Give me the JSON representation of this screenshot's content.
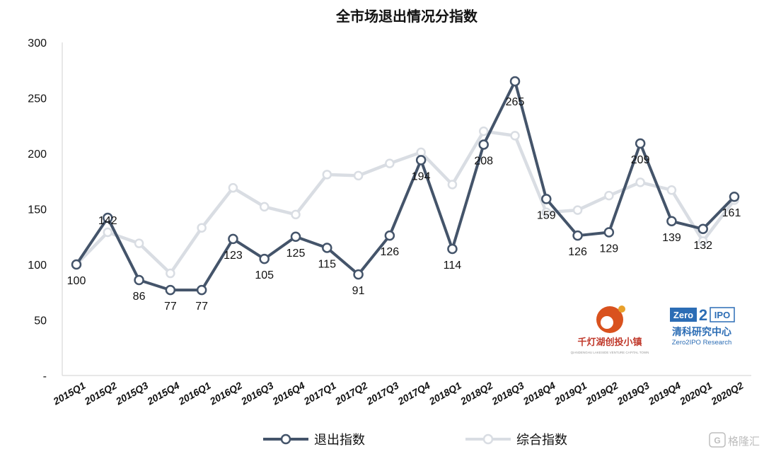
{
  "chart_data": {
    "type": "line",
    "title": "全市场退出情况分指数",
    "categories": [
      "2015Q1",
      "2015Q2",
      "2015Q3",
      "2015Q4",
      "2016Q1",
      "2016Q2",
      "2016Q3",
      "2016Q4",
      "2017Q1",
      "2017Q2",
      "2017Q3",
      "2017Q4",
      "2018Q1",
      "2018Q2",
      "2018Q3",
      "2018Q4",
      "2019Q1",
      "2019Q2",
      "2019Q3",
      "2019Q4",
      "2020Q1",
      "2020Q2"
    ],
    "y_tick_labels": [
      "-",
      "50",
      "100",
      "150",
      "200",
      "250",
      "300"
    ],
    "ylim": [
      0,
      300
    ],
    "series": [
      {
        "name": "退出指数",
        "color": "#44546a",
        "values": [
          100,
          142,
          86,
          77,
          77,
          123,
          105,
          125,
          115,
          91,
          126,
          194,
          114,
          208,
          265,
          159,
          126,
          129,
          209,
          139,
          132,
          161
        ],
        "data_labels": true
      },
      {
        "name": "综合指数",
        "color": "#d9dde3",
        "values": [
          100,
          129,
          119,
          92,
          133,
          169,
          152,
          145,
          181,
          180,
          191,
          201,
          172,
          220,
          216,
          147,
          149,
          162,
          174,
          167,
          121,
          158
        ],
        "data_labels": false
      }
    ],
    "legend": "bottom",
    "grid": false
  },
  "logos": {
    "qdh_text": "千灯湖创投小镇",
    "qdh_sub": "QIANDENGHU LAKESIDE VENTURE CAPITAL TOWN",
    "zero2ipo_badge_left": "Zero",
    "zero2ipo_badge_mid": "2",
    "zero2ipo_badge_right": "IPO",
    "zero2ipo_cn": "清科研究中心",
    "zero2ipo_en": "Zero2IPO Research"
  },
  "watermark": {
    "text": "格隆汇"
  }
}
